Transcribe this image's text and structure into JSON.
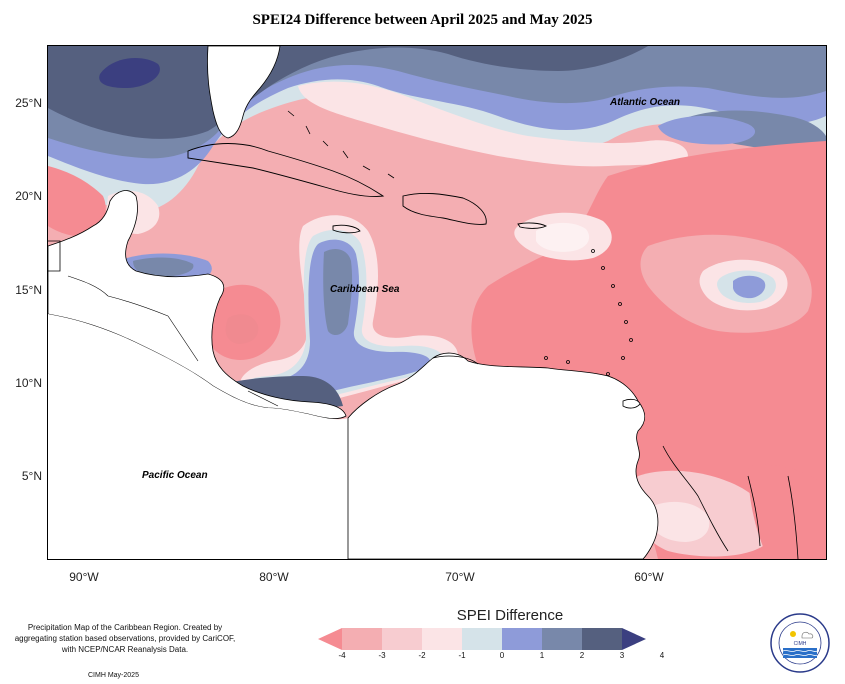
{
  "title": "SPEI24 Difference between April 2025 and May 2025",
  "map": {
    "lat_ticks": [
      "25°N",
      "20°N",
      "15°N",
      "10°N",
      "5°N"
    ],
    "lon_ticks": [
      "90°W",
      "80°W",
      "70°W",
      "60°W"
    ],
    "labels": {
      "atlantic": "Atlantic Ocean",
      "caribbean": "Caribbean Sea",
      "pacific": "Pacific Ocean"
    }
  },
  "legend": {
    "title": "SPEI Difference",
    "ticks": [
      "-4",
      "-3",
      "-2",
      "-1",
      "0",
      "1",
      "2",
      "3",
      "4"
    ],
    "colors": [
      "#f58b92",
      "#f4aeb2",
      "#f7ccd0",
      "#fbe4e6",
      "#d5e3e9",
      "#8e9bd9",
      "#7888aa",
      "#55607f",
      "#3b3f80"
    ]
  },
  "source_note": "Precipitation Map of the Caribbean Region. Created by aggregating station based observations, provided by CariCOF, with NCEP/NCAR Reanalysis Data.",
  "credit": "CIMH May-2025",
  "logo": {
    "text": "CIMH",
    "ring_text": "CARIBBEAN INSTITUTE FOR METEOROLOGY AND HYDROLOGY"
  }
}
